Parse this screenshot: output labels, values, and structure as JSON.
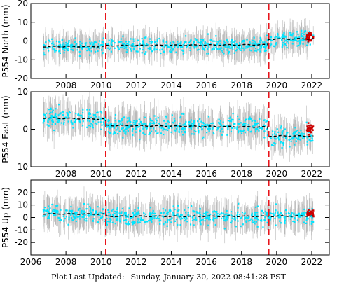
{
  "chart_data": [
    {
      "type": "scatter",
      "station": "P554",
      "component": "North",
      "ylabel": "P554 North (mm)",
      "ylim": [
        -20,
        20
      ],
      "yticks": [
        -20,
        -10,
        0,
        10,
        20
      ],
      "series": [
        {
          "role": "observations",
          "x_range": [
            2006.7,
            2022.1
          ],
          "y_center": -2.5,
          "spread": 4,
          "color": "#00e5ff"
        },
        {
          "role": "error-bars",
          "color": "#a8a8a8"
        },
        {
          "role": "model",
          "x": [
            2006.7,
            2010.27,
            2019.55,
            2022.1
          ],
          "y": [
            -3,
            -2.5,
            1,
            2.5
          ],
          "color": "#000000"
        },
        {
          "role": "recent",
          "x_range": [
            2021.7,
            2022.1
          ],
          "y_center": 2,
          "color": "#cc0000"
        }
      ]
    },
    {
      "type": "scatter",
      "station": "P554",
      "component": "East",
      "ylabel": "P554 East (mm)",
      "ylim": [
        -10,
        10
      ],
      "yticks": [
        -10,
        0,
        10
      ],
      "series": [
        {
          "role": "observations",
          "x_range": [
            2006.7,
            2022.1
          ],
          "y_center": 1,
          "spread": 2.5,
          "color": "#00e5ff"
        },
        {
          "role": "error-bars",
          "color": "#a8a8a8"
        },
        {
          "role": "model",
          "x": [
            2006.7,
            2010.27,
            2019.55,
            2022.1
          ],
          "y": [
            3,
            1,
            -1.8,
            -2
          ],
          "color": "#000000"
        },
        {
          "role": "recent",
          "x_range": [
            2021.7,
            2022.1
          ],
          "y_center": 0,
          "color": "#cc0000"
        }
      ]
    },
    {
      "type": "scatter",
      "station": "P554",
      "component": "Up",
      "ylabel": "P554 Up (mm)",
      "ylim": [
        -30,
        30
      ],
      "yticks": [
        -20,
        -10,
        0,
        10,
        20
      ],
      "series": [
        {
          "role": "observations",
          "x_range": [
            2006.7,
            2022.1
          ],
          "y_center": 1,
          "spread": 7,
          "color": "#00e5ff"
        },
        {
          "role": "error-bars",
          "color": "#a8a8a8"
        },
        {
          "role": "model",
          "x": [
            2006.7,
            2010.27,
            2019.55,
            2022.1
          ],
          "y": [
            3,
            1,
            1,
            3
          ],
          "color": "#000000"
        },
        {
          "role": "recent",
          "x_range": [
            2021.7,
            2022.1
          ],
          "y_center": 3,
          "color": "#cc0000"
        }
      ]
    }
  ],
  "x_axis": {
    "xlim": [
      2006,
      2023
    ],
    "ticks": [
      2006,
      2008,
      2010,
      2012,
      2014,
      2016,
      2018,
      2020,
      2022
    ],
    "labels": [
      "2006",
      "2008",
      "2010",
      "2012",
      "2014",
      "2016",
      "2018",
      "2020",
      "2022"
    ]
  },
  "events": [
    {
      "x": 2010.27,
      "color": "#e8141b"
    },
    {
      "x": 2019.55,
      "color": "#e8141b"
    }
  ],
  "footer": {
    "label": "Plot Last Updated:",
    "value": "Sunday, January 30, 2022 08:41:28 PST"
  }
}
